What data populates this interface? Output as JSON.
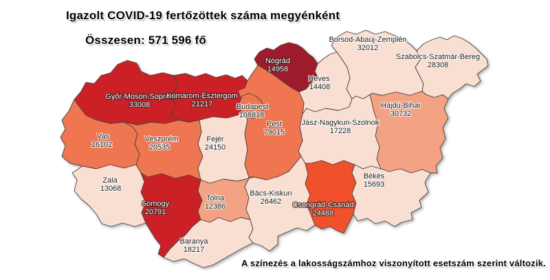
{
  "title": "Igazolt COVID-19 fertőzöttek száma megyénként",
  "subtitle": "Összesen: 571 596 fő",
  "footnote": "A színezés a lakosságszámhoz viszonyított esetszám szerint változik.",
  "palette": {
    "tier1_lightest": "#f9ded2",
    "tier2_salmon": "#f3a383",
    "tier3_orange": "#ef7650",
    "tier4_orange_red": "#f1502d",
    "tier5_red": "#cb2126",
    "tier6_maroon": "#9e1b2c",
    "border": "#4a413d",
    "label_dark": "#1a1a1a",
    "label_light": "#ffffff"
  },
  "map": {
    "counties": [
      {
        "id": "gyms",
        "name": "Győr-Moson-Sopron",
        "value": "33008",
        "color": "#cb2126",
        "text": "light"
      },
      {
        "id": "ke",
        "name": "Komárom-Esztergom",
        "value": "21217",
        "color": "#cb2126",
        "text": "light"
      },
      {
        "id": "nograd",
        "name": "Nógrád",
        "value": "14958",
        "color": "#9e1b2c",
        "text": "light"
      },
      {
        "id": "borsod",
        "name": "Borsod-Abaúj-Zemplén",
        "value": "32012",
        "color": "#f9ded2",
        "text": "dark"
      },
      {
        "id": "szabolcs",
        "name": "Szabolcs-Szatmár-Bereg",
        "value": "28308",
        "color": "#f9ded2",
        "text": "dark"
      },
      {
        "id": "heves",
        "name": "Heves",
        "value": "14408",
        "color": "#f9ded2",
        "text": "dark"
      },
      {
        "id": "hajdu",
        "name": "Hajdú-Bihar",
        "value": "30732",
        "color": "#f3a383",
        "text": "dark"
      },
      {
        "id": "jasz",
        "name": "Jász-Nagykun-Szolnok",
        "value": "17228",
        "color": "#f9ded2",
        "text": "dark"
      },
      {
        "id": "vas",
        "name": "Vas",
        "value": "16102",
        "color": "#ef7650",
        "text": "dark"
      },
      {
        "id": "veszprem",
        "name": "Veszprém",
        "value": "20535",
        "color": "#ef7650",
        "text": "dark"
      },
      {
        "id": "zala",
        "name": "Zala",
        "value": "13068",
        "color": "#f9ded2",
        "text": "dark"
      },
      {
        "id": "somogy",
        "name": "Somogy",
        "value": "20791",
        "color": "#cb2126",
        "text": "light"
      },
      {
        "id": "fejer",
        "name": "Fejér",
        "value": "24150",
        "color": "#f9ded2",
        "text": "dark"
      },
      {
        "id": "tolna",
        "name": "Tolna",
        "value": "12386",
        "color": "#f3a383",
        "text": "dark"
      },
      {
        "id": "baranya",
        "name": "Baranya",
        "value": "18217",
        "color": "#f9ded2",
        "text": "dark"
      },
      {
        "id": "bacs",
        "name": "Bács-Kiskun",
        "value": "26462",
        "color": "#f9ded2",
        "text": "dark"
      },
      {
        "id": "csongrad",
        "name": "Csongrád-Csanád",
        "value": "24488",
        "color": "#f1502d",
        "text": "light"
      },
      {
        "id": "bekes",
        "name": "Békés",
        "value": "15693",
        "color": "#f9ded2",
        "text": "dark"
      },
      {
        "id": "pest",
        "name": "Pest",
        "value": "79015",
        "color": "#ef7650",
        "text": "dark"
      },
      {
        "id": "budapest",
        "name": "Budapest",
        "value": "108818",
        "color": "#ef7650",
        "text": "dark"
      }
    ]
  }
}
